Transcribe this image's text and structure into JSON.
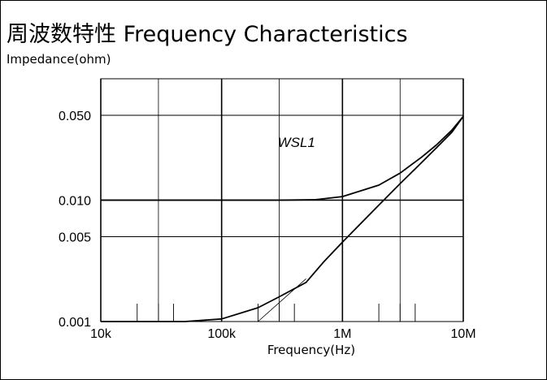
{
  "chart_data": {
    "type": "line",
    "title": "周波数特性 Frequency Characteristics",
    "ylabel": "Impedance(ohm)",
    "xlabel": "Frequency(Hz)",
    "x_scale": "log",
    "y_scale": "log",
    "xlim": [
      10000,
      10000000
    ],
    "ylim": [
      0.001,
      0.1
    ],
    "x_ticks": [
      {
        "value": 10000,
        "label": "10k"
      },
      {
        "value": 100000,
        "label": "100k"
      },
      {
        "value": 1000000,
        "label": "1M"
      },
      {
        "value": 10000000,
        "label": "10M"
      }
    ],
    "y_ticks": [
      {
        "value": 0.001,
        "label": "0.001"
      },
      {
        "value": 0.005,
        "label": "0.005"
      },
      {
        "value": 0.01,
        "label": "0.010"
      },
      {
        "value": 0.05,
        "label": "0.050"
      }
    ],
    "grid": true,
    "annotations": [
      {
        "text": "WSL1",
        "x": 300000,
        "y": 0.03
      }
    ],
    "series": [
      {
        "values": [
          [
            10000,
            0.001
          ],
          [
            50000,
            0.001
          ],
          [
            100000,
            0.00105
          ],
          [
            200000,
            0.0013
          ],
          [
            300000,
            0.0016
          ],
          [
            500000,
            0.0021
          ],
          [
            700000,
            0.0031
          ],
          [
            1000000,
            0.0045
          ],
          [
            2000000,
            0.0091
          ],
          [
            3000000,
            0.0137
          ],
          [
            4500000,
            0.0203
          ],
          [
            6000000,
            0.027
          ],
          [
            8000000,
            0.036
          ],
          [
            10000000,
            0.049
          ]
        ]
      },
      {
        "values": [
          [
            10000,
            0.01
          ],
          [
            300000,
            0.01
          ],
          [
            600000,
            0.0101
          ],
          [
            1000000,
            0.0107
          ],
          [
            2000000,
            0.0133
          ],
          [
            3000000,
            0.0167
          ],
          [
            4500000,
            0.0225
          ],
          [
            6000000,
            0.0285
          ],
          [
            8000000,
            0.0375
          ],
          [
            10000000,
            0.049
          ]
        ]
      },
      {
        "values": [
          [
            200000,
            0.001
          ],
          [
            500000,
            0.00225
          ]
        ]
      }
    ]
  }
}
